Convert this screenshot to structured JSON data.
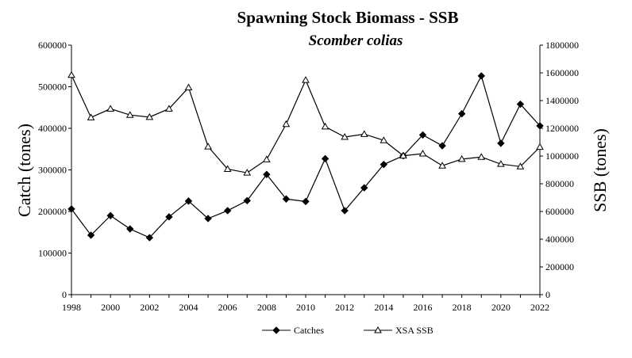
{
  "chart_data": {
    "type": "line",
    "title": "Spawning Stock Biomass - SSB",
    "subtitle": "Scomber colias",
    "ylabel_left": "Catch (tones)",
    "ylabel_right": "SSB  (tones)",
    "x": [
      1998,
      1999,
      2000,
      2001,
      2002,
      2003,
      2004,
      2005,
      2006,
      2007,
      2008,
      2009,
      2010,
      2011,
      2012,
      2013,
      2014,
      2015,
      2016,
      2017,
      2018,
      2019,
      2020,
      2021,
      2022
    ],
    "xlim": [
      1998,
      2022
    ],
    "x_ticks": [
      "1998",
      "2000",
      "2002",
      "2004",
      "2006",
      "2008",
      "2010",
      "2012",
      "2014",
      "2016",
      "2018",
      "2020",
      "2022"
    ],
    "ylim_left": [
      0,
      600000
    ],
    "y_ticks_left": [
      "0",
      "100000",
      "200000",
      "300000",
      "400000",
      "500000",
      "600000"
    ],
    "ylim_right": [
      0,
      1800000
    ],
    "y_ticks_right": [
      "0",
      "200000",
      "400000",
      "600000",
      "800000",
      "1000000",
      "1200000",
      "1400000",
      "1600000",
      "1800000"
    ],
    "grid": false,
    "legend_position": "bottom",
    "series": [
      {
        "name": "Catches",
        "axis": "left",
        "marker": "diamond",
        "color": "#000000",
        "values": [
          206000,
          143000,
          190000,
          158000,
          137000,
          187000,
          225000,
          183000,
          202000,
          226000,
          289000,
          230000,
          224000,
          327000,
          202000,
          257000,
          313000,
          334000,
          384000,
          358000,
          435000,
          526000,
          364000,
          458000,
          406000
        ]
      },
      {
        "name": "XSA SSB",
        "axis": "right",
        "marker": "triangle",
        "color": "#000000",
        "values": [
          1584000,
          1278000,
          1341000,
          1296000,
          1281000,
          1341000,
          1494000,
          1068000,
          906000,
          879000,
          975000,
          1230000,
          1548000,
          1212000,
          1137000,
          1158000,
          1113000,
          1002000,
          1017000,
          930000,
          978000,
          993000,
          942000,
          924000,
          1065000
        ]
      }
    ]
  }
}
